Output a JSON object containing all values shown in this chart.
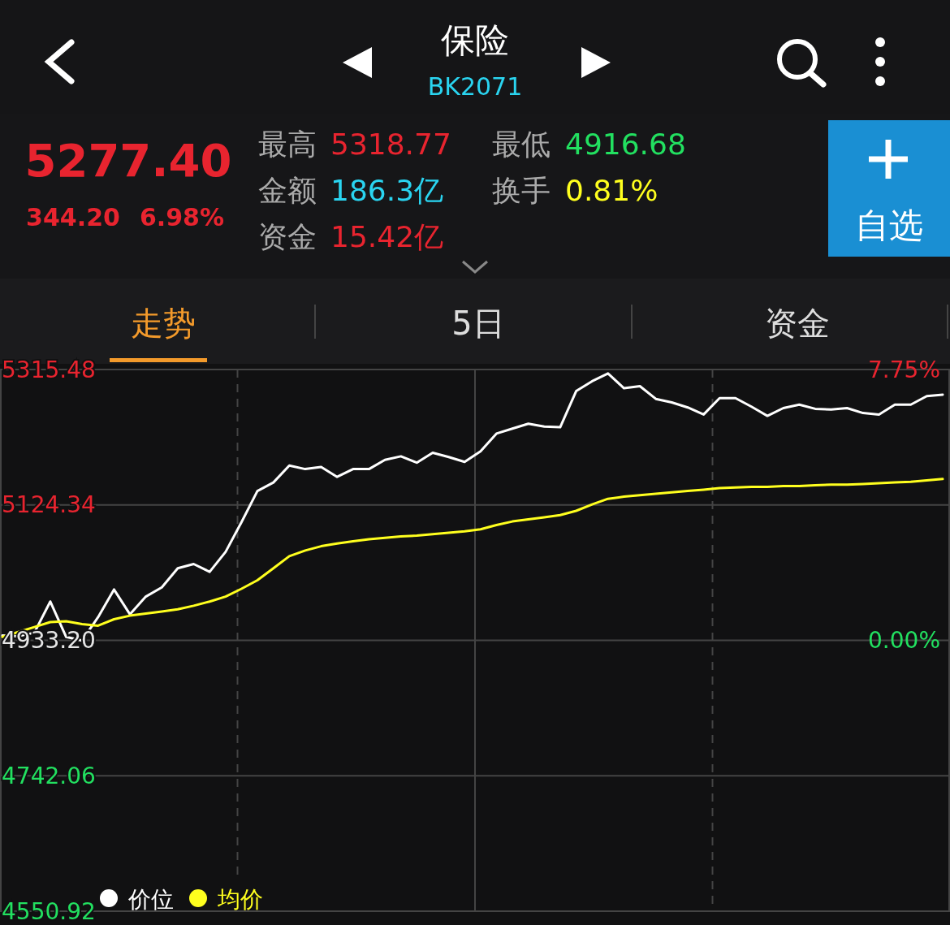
{
  "chart_data": {
    "type": "line",
    "title": "保险",
    "subtitle": "BK2071",
    "annotations": [
      "5277.40",
      "344.20",
      "6.98%",
      "最高",
      "5318.77",
      "金额",
      "186.3亿",
      "资金",
      "15.42亿",
      "最低",
      "4916.68",
      "换手",
      "0.81%",
      "自选",
      "走势",
      "5日",
      "资金"
    ],
    "categories": [
      null,
      null,
      null,
      null,
      null,
      null,
      null,
      null,
      null,
      null,
      null,
      null,
      null,
      null,
      null,
      null,
      null,
      null,
      null,
      null,
      null,
      null,
      null,
      null,
      null,
      null,
      null,
      null,
      null,
      null,
      null,
      null,
      null,
      null,
      null,
      null,
      null,
      null,
      null,
      null,
      null,
      null,
      null,
      null,
      null,
      null,
      null,
      null,
      null,
      null,
      null,
      null,
      null,
      null,
      null,
      null,
      null,
      null,
      null,
      null
    ],
    "ylim": [
      4550.92,
      5315.48
    ],
    "yticks": [
      {
        "value": 4550.92,
        "label": "4550.92"
      },
      {
        "value": 4742.06,
        "label": "4742.06"
      },
      {
        "value": 4933.2,
        "label": "4933.20"
      },
      {
        "value": 5124.34,
        "label": "5124.34"
      },
      {
        "value": 5315.48,
        "label": "5315.48"
      }
    ],
    "y2lim": [
      -7.75,
      7.75
    ],
    "y2ticks": [
      {
        "value": 7.75,
        "label": "7.75%"
      },
      {
        "value": 0,
        "label": "0.00%"
      }
    ],
    "tick_labels": "y",
    "grid": true,
    "legend": "bottom left",
    "line_style": "solid",
    "series": [
      {
        "name": "价位",
        "color": "#ffffff",
        "values": [
          4940,
          4939,
          4944,
          4988,
          4938,
          4933,
          4966,
          5005,
          4970,
          4995,
          5008,
          5035,
          5041,
          5030,
          5058,
          5100,
          5144,
          5156,
          5180,
          5175,
          5178,
          5164,
          5175,
          5175,
          5188,
          5193,
          5184,
          5198,
          5192,
          5185,
          5200,
          5225,
          5232,
          5239,
          5235,
          5234,
          5285,
          5299,
          5310,
          5289,
          5292,
          5274,
          5269,
          5262,
          5252,
          5275,
          5275,
          5263,
          5250,
          5261,
          5266,
          5260,
          5259,
          5261,
          5254,
          5252,
          5266,
          5266,
          5278,
          5280
        ]
      },
      {
        "name": "均价",
        "color": "#ffff1e",
        "values": [
          4938,
          4945,
          4952,
          4959,
          4960,
          4956,
          4954,
          4963,
          4968,
          4971,
          4974,
          4977,
          4982,
          4988,
          4995,
          5006,
          5018,
          5035,
          5052,
          5060,
          5066,
          5070,
          5073,
          5076,
          5078,
          5080,
          5081,
          5083,
          5085,
          5087,
          5090,
          5096,
          5101,
          5104,
          5107,
          5110,
          5116,
          5125,
          5133,
          5136,
          5138,
          5140,
          5142,
          5144,
          5146,
          5148,
          5149,
          5150,
          5150,
          5151,
          5151,
          5152,
          5153,
          5153,
          5154,
          5155,
          5156,
          5157,
          5159,
          5161
        ]
      }
    ]
  }
}
